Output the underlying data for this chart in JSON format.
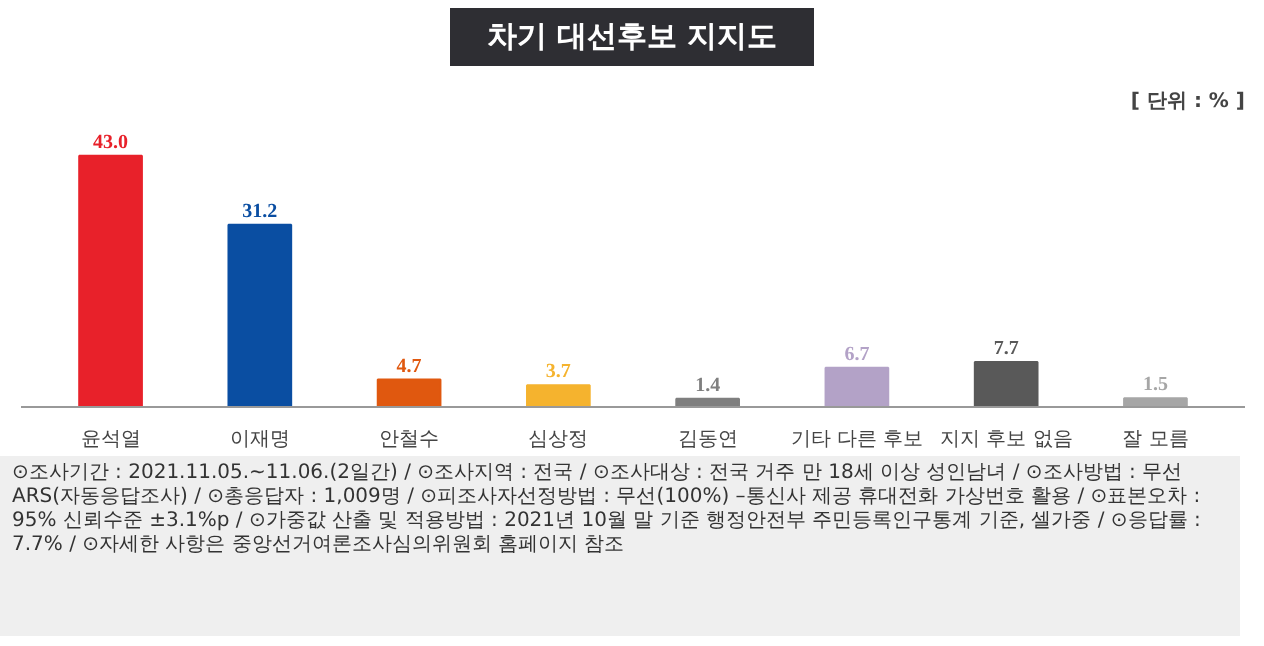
{
  "chart_data": {
    "type": "bar",
    "title": "차기 대선후보 지지도",
    "categories": [
      "윤석열",
      "이재명",
      "안철수",
      "심상정",
      "김동연",
      "기타 다른 후보",
      "지지 후보 없음",
      "잘 모름"
    ],
    "values": [
      43.0,
      31.2,
      4.7,
      3.7,
      1.4,
      6.7,
      7.7,
      1.5
    ],
    "colors": [
      "#e8212a",
      "#0a4ea2",
      "#e0580f",
      "#f5b32e",
      "#7f7f7f",
      "#b3a2c7",
      "#595959",
      "#a6a6a6"
    ],
    "value_labels": [
      "43.0",
      "31.2",
      "4.7",
      "3.7",
      "1.4",
      "6.7",
      "7.7",
      "1.5"
    ],
    "annotations": [
      "[ 단위 : % ]",
      "⊙조사기간 : 2021.11.05.~11.06.(2일간) / ⊙조사지역 : 전국 / ⊙조사대상 : 전국 거주 만 18세 이상 성인남녀 / ⊙조사방법 : 무선 ARS(자동응답조사) / ⊙총응답자 : 1,009명 / ⊙피조사자선정방법 : 무선(100%) –통신사 제공 휴대전화 가상번호 활용 / ⊙표본오차 : 95% 신뢰수준 ±3.1%p / ⊙가중값 산출 및 적용방법 : 2021년 10월 말 기준 행정안전부 주민등록인구통계 기준, 셀가중 / ⊙응답률 : 7.7% / ⊙자세한 사항은 중앙선거여론조사심의위원회 홈페이지 참조"
    ],
    "grid": false
  }
}
